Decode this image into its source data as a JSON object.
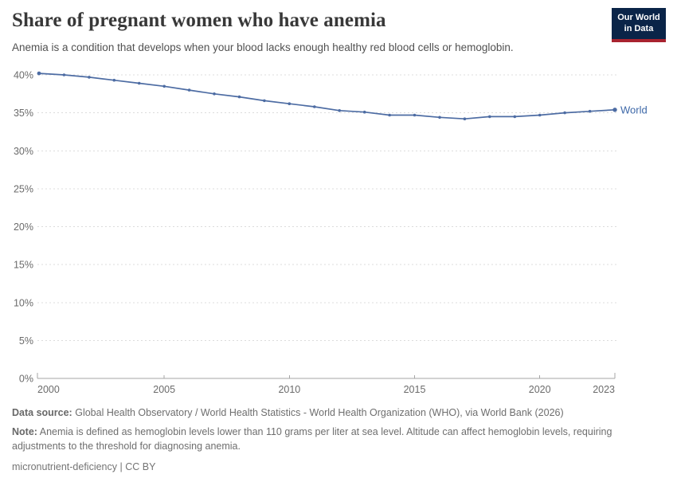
{
  "header": {
    "title": "Share of pregnant women who have anemia",
    "subtitle": "Anemia is a condition that develops when your blood lacks enough healthy red blood cells or hemoglobin.",
    "logo": {
      "line1": "Our World",
      "line2": "in Data"
    },
    "logo_colors": {
      "background": "#0a2448",
      "stripe": "#a8232f"
    }
  },
  "chart_data": {
    "type": "line",
    "title": "Share of pregnant women who have anemia",
    "unit": "%",
    "grid": "horizontal-dashed",
    "legend_position": "line-end-label",
    "xlim": [
      2000,
      2023
    ],
    "ylim": [
      0,
      40
    ],
    "x": [
      2000,
      2001,
      2002,
      2003,
      2004,
      2005,
      2006,
      2007,
      2008,
      2009,
      2010,
      2011,
      2012,
      2013,
      2014,
      2015,
      2016,
      2017,
      2018,
      2019,
      2020,
      2021,
      2022,
      2023
    ],
    "series": [
      {
        "name": "World",
        "color": "#4d6ca3",
        "label_color": "#3d68a8",
        "values": [
          40.2,
          40.0,
          39.7,
          39.3,
          38.9,
          38.5,
          38.0,
          37.5,
          37.1,
          36.6,
          36.2,
          35.8,
          35.3,
          35.1,
          34.7,
          34.7,
          34.4,
          34.2,
          34.5,
          34.5,
          34.7,
          35.0,
          35.2,
          35.4
        ]
      }
    ],
    "yticks": [
      {
        "v": 0,
        "label": "0%"
      },
      {
        "v": 5,
        "label": "5%"
      },
      {
        "v": 10,
        "label": "10%"
      },
      {
        "v": 15,
        "label": "15%"
      },
      {
        "v": 20,
        "label": "20%"
      },
      {
        "v": 25,
        "label": "25%"
      },
      {
        "v": 30,
        "label": "30%"
      },
      {
        "v": 35,
        "label": "35%"
      },
      {
        "v": 40,
        "label": "40%"
      }
    ],
    "xticks": [
      {
        "v": 2000,
        "label": "2000"
      },
      {
        "v": 2005,
        "label": "2005"
      },
      {
        "v": 2010,
        "label": "2010"
      },
      {
        "v": 2015,
        "label": "2015"
      },
      {
        "v": 2020,
        "label": "2020"
      },
      {
        "v": 2023,
        "label": "2023"
      }
    ]
  },
  "footer": {
    "data_source_label": "Data source:",
    "data_source": "Global Health Observatory / World Health Statistics - World Health Organization (WHO), via World Bank (2026)",
    "note_label": "Note:",
    "note": "Anemia is defined as hemoglobin levels lower than 110 grams per liter at sea level. Altitude can affect hemoglobin levels, requiring adjustments to the threshold for diagnosing anemia.",
    "slug": "micronutrient-deficiency",
    "separator": "|",
    "license": "CC BY"
  }
}
